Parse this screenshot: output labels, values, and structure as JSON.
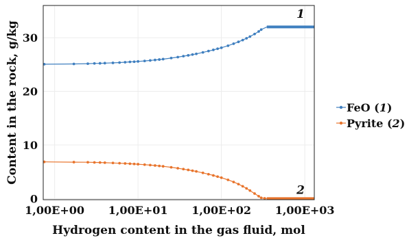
{
  "chart_data": {
    "type": "line",
    "xlabel": "Hydrogen content in the gas fluid, mol",
    "ylabel": "Content in the rock, g/kg",
    "x_scale": "log",
    "xlim": [
      0.73,
      1300
    ],
    "ylim": [
      -0.2,
      36
    ],
    "x_ticks": [
      1,
      10,
      100,
      1000
    ],
    "x_tick_labels": [
      "1,00E+00",
      "1,00E+01",
      "1,00E+02",
      "1,00E+03"
    ],
    "y_ticks": [
      0,
      10,
      20,
      30
    ],
    "y_tick_labels": [
      "0",
      "10",
      "20",
      "30"
    ],
    "grid": true,
    "legend_position": "right",
    "series": [
      {
        "name": "FeO",
        "name_number": "1",
        "color": "#3f7fbf",
        "marker_x": [
          0.75,
          1.7,
          2.5,
          3,
          3.5,
          4,
          5,
          6,
          7,
          8,
          9,
          10,
          12,
          14,
          16,
          18,
          20,
          25,
          30,
          35,
          40,
          45,
          50,
          60,
          70,
          80,
          90,
          100,
          120,
          140,
          160,
          180,
          200,
          220,
          250,
          280,
          300
        ],
        "marker_y": [
          25.05,
          25.1,
          25.15,
          25.2,
          25.22,
          25.25,
          25.3,
          25.36,
          25.42,
          25.48,
          25.52,
          25.57,
          25.66,
          25.75,
          25.84,
          25.92,
          26.0,
          26.2,
          26.38,
          26.55,
          26.7,
          26.85,
          26.98,
          27.25,
          27.5,
          27.72,
          27.93,
          28.12,
          28.5,
          28.87,
          29.22,
          29.55,
          29.88,
          30.2,
          30.68,
          31.15,
          31.5
        ],
        "segment_x": [
          350,
          1300
        ],
        "segment_y": [
          32,
          32
        ],
        "label": "1"
      },
      {
        "name": "Pyrite",
        "name_number": "2",
        "color": "#e8742c",
        "marker_x": [
          0.75,
          1.7,
          2.5,
          3,
          3.5,
          4,
          5,
          6,
          7,
          8,
          9,
          10,
          12,
          14,
          16,
          18,
          20,
          25,
          30,
          35,
          40,
          45,
          50,
          60,
          70,
          80,
          90,
          100,
          120,
          140,
          160,
          180,
          200,
          220,
          250,
          280,
          300,
          330
        ],
        "marker_y": [
          6.85,
          6.8,
          6.78,
          6.75,
          6.73,
          6.7,
          6.65,
          6.6,
          6.55,
          6.5,
          6.46,
          6.42,
          6.33,
          6.25,
          6.17,
          6.09,
          6.02,
          5.84,
          5.66,
          5.5,
          5.35,
          5.2,
          5.07,
          4.8,
          4.55,
          4.32,
          4.1,
          3.9,
          3.5,
          3.1,
          2.7,
          2.3,
          1.9,
          1.5,
          0.95,
          0.45,
          0.15,
          0.05
        ],
        "segment_x": [
          350,
          1300
        ],
        "segment_y": [
          0,
          0
        ],
        "label": "2"
      }
    ]
  }
}
